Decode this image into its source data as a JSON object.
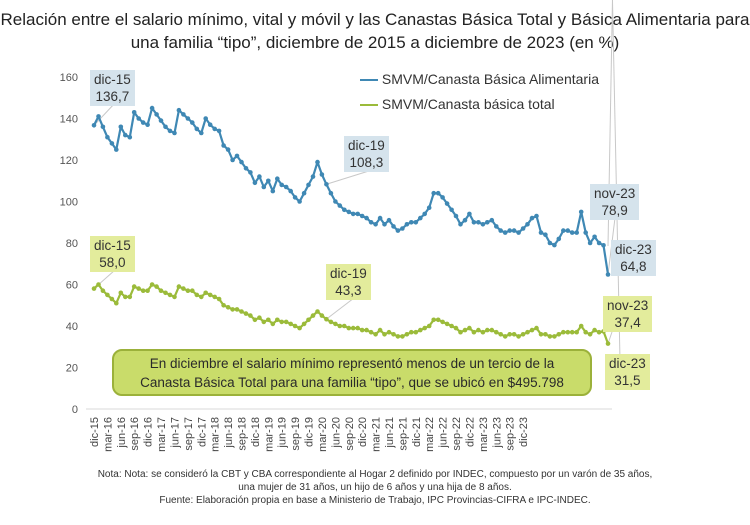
{
  "title": "Relación entre el salario mínimo, vital y móvil y las Canastas Básica Total y Básica Alimentaria para una familia “tipo”, diciembre de 2015 a diciembre de 2023 (en %)",
  "callout": {
    "line1": "En diciembre el salario mínimo representó menos de un tercio de la",
    "line2": "Canasta Básica Total para una familia “tipo”, que se ubicó en $495.798"
  },
  "notes": {
    "line1": "Nota: Nota: se consideró la CBT y CBA correspondiente al Hogar 2 definido por INDEC, compuesto por un varón de 35 años,",
    "line2": "una mujer de 31 años, un hijo de 6 años y una hija de 8 años.",
    "line3": "Fuente: Elaboración propia en base a Ministerio de Trabajo, IPC Provincias-CIFRA e IPC-INDEC."
  },
  "chart_data": {
    "type": "line",
    "title": "Relación entre el salario mínimo, vital y móvil y las Canastas Básica Total y Básica Alimentaria para una familia “tipo”, diciembre de 2015 a diciembre de 2023 (en %)",
    "xlabel": "",
    "ylabel": "",
    "ylim": [
      0,
      160
    ],
    "yticks": [
      "0",
      "20",
      "40",
      "60",
      "80",
      "100",
      "120",
      "140",
      "160"
    ],
    "grid": false,
    "legend_position": "top-right",
    "xtick_labels": [
      "dic-15",
      "mar-16",
      "jun-16",
      "sep-16",
      "dic-16",
      "mar-17",
      "jun-17",
      "sep-17",
      "dic-17",
      "mar-18",
      "jun-18",
      "sep-18",
      "dic-18",
      "mar-19",
      "jun-19",
      "sep-19",
      "dic-19",
      "mar-20",
      "jun-20",
      "sep-20",
      "dic-20",
      "mar-21",
      "jun-21",
      "sep-21",
      "dic-21",
      "mar-22",
      "jun-22",
      "sep-22",
      "dic-22",
      "mar-23",
      "jun-23",
      "sep-23",
      "dic-23"
    ],
    "series": [
      {
        "name": "SMVM/Canasta Básica Alimentaria",
        "color": "#3f88b4",
        "values": [
          136.7,
          141,
          136,
          131,
          128,
          125,
          136,
          132,
          131,
          143,
          140,
          138,
          137,
          145,
          142,
          139,
          136,
          134,
          133,
          144,
          142,
          140,
          138,
          135,
          133,
          140,
          137,
          135,
          134,
          127,
          125,
          120,
          122,
          119,
          116,
          114,
          109,
          112,
          107,
          110,
          105,
          111,
          108,
          107,
          105,
          102,
          100,
          104,
          108,
          112,
          119,
          113,
          108.3,
          104,
          100,
          98,
          96,
          95,
          94,
          94,
          93,
          92,
          90,
          89,
          92,
          89,
          91,
          88,
          86,
          87,
          89,
          90,
          90,
          92,
          94,
          97,
          104,
          104,
          102,
          99,
          96,
          93,
          89,
          91,
          94,
          90,
          90,
          89,
          90,
          91,
          88,
          86,
          85,
          86,
          86,
          85,
          87,
          89,
          92,
          93,
          85,
          84,
          80,
          79,
          82,
          86,
          86,
          85,
          85,
          95,
          85,
          80,
          83,
          80,
          78.9,
          64.8
        ],
        "annotations": [
          {
            "label": "dic-15",
            "value_text": "136,7"
          },
          {
            "label": "dic-19",
            "value_text": "108,3"
          },
          {
            "label": "nov-23",
            "value_text": "78,9"
          },
          {
            "label": "dic-23",
            "value_text": "64,8"
          }
        ]
      },
      {
        "name": "SMVM/Canasta básica total",
        "color": "#9bbb3a",
        "values": [
          58.0,
          60,
          57,
          55,
          53,
          51,
          56,
          54,
          54,
          59,
          58,
          57,
          57,
          60,
          59,
          57,
          56,
          55,
          54,
          59,
          58,
          57,
          57,
          55,
          54,
          56,
          55,
          54,
          53,
          50,
          49,
          48,
          48,
          47,
          46,
          45,
          43,
          44,
          42,
          43,
          41,
          43,
          42,
          42,
          41,
          40,
          39,
          41,
          43,
          45,
          47,
          45,
          43.3,
          42,
          41,
          40,
          40,
          39,
          39,
          39,
          38,
          38,
          37,
          36,
          38,
          36,
          37,
          36,
          35,
          35,
          36,
          37,
          37,
          38,
          39,
          40,
          43,
          43,
          42,
          41,
          40,
          39,
          37,
          38,
          39,
          37,
          38,
          37,
          38,
          38,
          37,
          36,
          35,
          36,
          36,
          35,
          36,
          37,
          38,
          39,
          36,
          36,
          35,
          35,
          36,
          37,
          37,
          37,
          37,
          40,
          37,
          36,
          38,
          37,
          37.4,
          31.5
        ],
        "annotations": [
          {
            "label": "dic-15",
            "value_text": "58,0"
          },
          {
            "label": "dic-19",
            "value_text": "43,3"
          },
          {
            "label": "nov-23",
            "value_text": "37,4"
          },
          {
            "label": "dic-23",
            "value_text": "31,5"
          }
        ]
      }
    ]
  }
}
